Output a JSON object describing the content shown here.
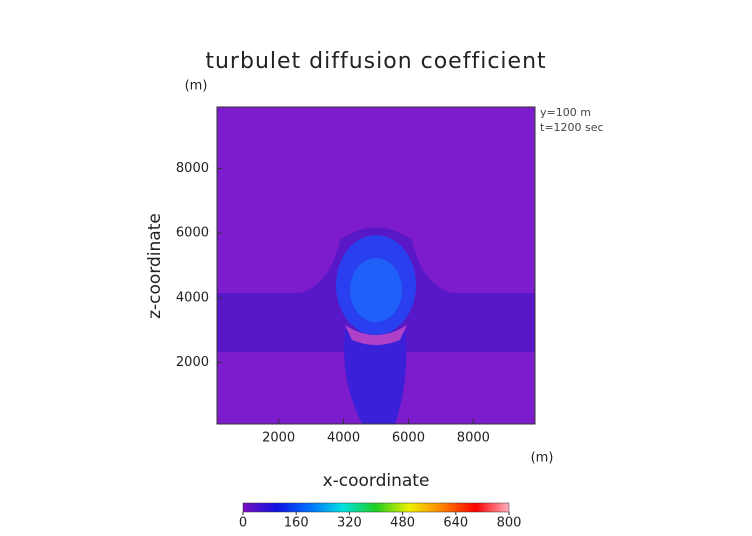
{
  "chart_data": {
    "type": "contour",
    "title": "turbulet diffusion coefficient",
    "x_label": "x-coordinate",
    "y_label": "z-coordinate",
    "x_unit": "(m)",
    "y_unit": "(m)",
    "annotations": [
      "y=100 m",
      "t=1200 sec"
    ],
    "xlim": [
      100,
      9900
    ],
    "ylim": [
      100,
      9900
    ],
    "xticks": [
      2000,
      4000,
      6000,
      8000
    ],
    "yticks": [
      2000,
      4000,
      6000,
      8000
    ],
    "colorbar": {
      "range": [
        0,
        800
      ],
      "ticks": [
        0,
        160,
        320,
        480,
        640,
        800
      ],
      "colors": [
        "#7a10c0",
        "#1010e0",
        "#0070ff",
        "#00e0e0",
        "#20d020",
        "#f0f000",
        "#ff8000",
        "#ff0000",
        "#ffb0c0"
      ]
    }
  }
}
